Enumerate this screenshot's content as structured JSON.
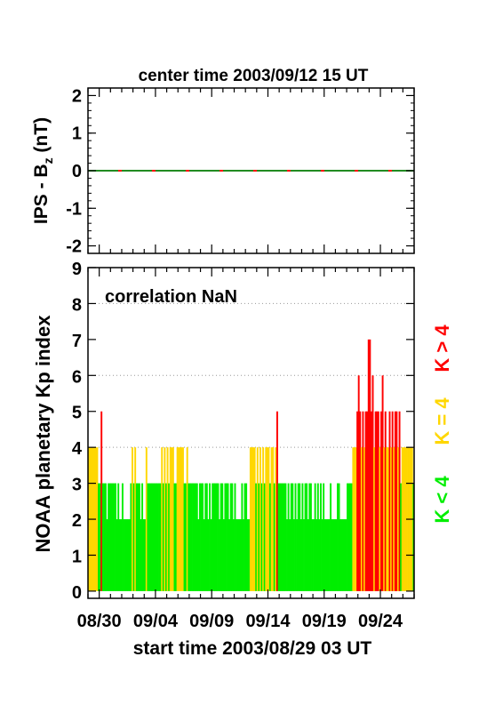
{
  "top_panel": {
    "title": "center time 2003/09/12 15 UT",
    "ylabel_main": "IPS - B",
    "ylabel_sub": "z",
    "ylabel_unit": " (nT)"
  },
  "bottom_panel": {
    "ylabel": "NOAA planetary Kp index",
    "annotation": "correlation NaN",
    "xlabel": "start time 2003/08/29 03 UT"
  },
  "legend": [
    {
      "label": "K > 4",
      "color": "#ff0000"
    },
    {
      "label": "K = 4",
      "color": "#ffd700"
    },
    {
      "label": "K < 4",
      "color": "#00ee00"
    }
  ],
  "colors": {
    "green": "#00ee00",
    "yellow": "#ffd700",
    "red": "#ff0000",
    "bz_line_a": "#228b22",
    "bz_line_b": "#ff0000"
  },
  "chart_data": [
    {
      "type": "line",
      "title": "center time 2003/09/12 15 UT",
      "ylabel": "IPS - Bz (nT)",
      "ylim": [
        -2.2,
        2.2
      ],
      "yticks": [
        -2,
        -1,
        0,
        1,
        2
      ],
      "x_days": [
        0,
        29
      ],
      "series": [
        {
          "values_constant": 0
        }
      ]
    },
    {
      "type": "bar",
      "ylabel": "NOAA planetary Kp index",
      "xlabel": "start time 2003/08/29 03 UT",
      "annotation": "correlation NaN",
      "ylim": [
        -0.2,
        9.0
      ],
      "yticks": [
        0,
        1,
        2,
        3,
        4,
        5,
        6,
        7,
        8,
        9
      ],
      "grid": "dotted horizontal",
      "x_tick_labels": [
        "08/30",
        "09/04",
        "09/09",
        "09/14",
        "09/19",
        "09/24"
      ],
      "x_tick_days": [
        1,
        6,
        11,
        16,
        21,
        26
      ],
      "interval_hours": 3,
      "kp": [
        4,
        4,
        4,
        4,
        4,
        4,
        4,
        3,
        3,
        5,
        3,
        3,
        3,
        2,
        3,
        3,
        3,
        3,
        3,
        3,
        2,
        3,
        2,
        2,
        3,
        2,
        2,
        2,
        2,
        2,
        3,
        4,
        3,
        4,
        3,
        3,
        3,
        2,
        3,
        2,
        2,
        4,
        3,
        3,
        3,
        3,
        3,
        3,
        3,
        3,
        3,
        3,
        4,
        3,
        4,
        3,
        4,
        3,
        4,
        4,
        4,
        3,
        3,
        4,
        4,
        4,
        4,
        4,
        3,
        3,
        4,
        3,
        3,
        3,
        3,
        3,
        3,
        3,
        2,
        3,
        3,
        3,
        2,
        3,
        3,
        2,
        3,
        2,
        3,
        3,
        3,
        3,
        3,
        2,
        3,
        3,
        2,
        3,
        3,
        3,
        2,
        3,
        3,
        2,
        3,
        2,
        2,
        2,
        2,
        3,
        2,
        3,
        3,
        2,
        2,
        4,
        4,
        4,
        4,
        3,
        4,
        3,
        4,
        3,
        4,
        3,
        4,
        4,
        4,
        3,
        4,
        4,
        3,
        4,
        5,
        3,
        3,
        3,
        3,
        3,
        3,
        2,
        3,
        2,
        3,
        3,
        2,
        3,
        2,
        3,
        3,
        2,
        3,
        2,
        3,
        3,
        2,
        3,
        3,
        2,
        2,
        3,
        2,
        3,
        2,
        3,
        2,
        3,
        2,
        2,
        2,
        2,
        3,
        2,
        2,
        2,
        2,
        3,
        3,
        2,
        2,
        2,
        2,
        2,
        3,
        3,
        3,
        3,
        4,
        4,
        4,
        5,
        6,
        5,
        4,
        5,
        4,
        5,
        5,
        7,
        7,
        5,
        6,
        4,
        5,
        5,
        5,
        4,
        5,
        6,
        4,
        5,
        4,
        4,
        5,
        4,
        5,
        4,
        5,
        5,
        4,
        5,
        3,
        4,
        4,
        4,
        4,
        4,
        4,
        4,
        4,
        3,
        4,
        4,
        4,
        5,
        4,
        4,
        4,
        4,
        4,
        4,
        4,
        4,
        3,
        4,
        4,
        4,
        4,
        4,
        3,
        4,
        4,
        4,
        4,
        4,
        4,
        4,
        4,
        5,
        5,
        5,
        4,
        4,
        5,
        3,
        4,
        4,
        4,
        4,
        5,
        5,
        4,
        4,
        4,
        4,
        3,
        3,
        4,
        4,
        3,
        3,
        4,
        3,
        3,
        3,
        4,
        3,
        3,
        3
      ]
    }
  ]
}
